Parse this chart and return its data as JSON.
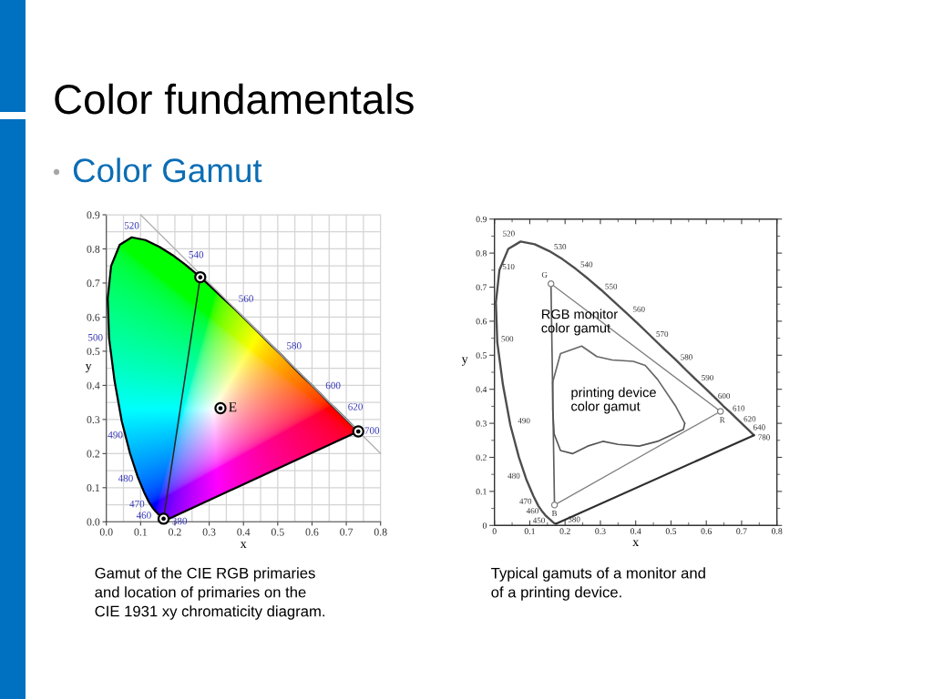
{
  "chart_data": [
    {
      "type": "other",
      "title": "Color fundamentals",
      "subtitle": "Color Gamut"
    },
    {
      "type": "line",
      "xlabel": "x",
      "ylabel": "y",
      "xlim": [
        0,
        0.8
      ],
      "ylim": [
        0,
        0.9
      ],
      "xticks": [
        {
          "value": 0,
          "label": "0.0"
        },
        {
          "value": 0.05,
          "label": null
        },
        0.1,
        {
          "value": 0.15,
          "label": null
        },
        0.2,
        {
          "value": 0.25,
          "label": null
        },
        0.3,
        {
          "value": 0.35,
          "label": null
        },
        0.4,
        {
          "value": 0.45,
          "label": null
        },
        0.5,
        {
          "value": 0.55,
          "label": null
        },
        0.6,
        {
          "value": 0.65,
          "label": null
        },
        0.7,
        {
          "value": 0.75,
          "label": null
        },
        0.8
      ],
      "yticks": [
        {
          "value": 0,
          "label": "0.0"
        },
        {
          "value": 0.05,
          "label": null
        },
        0.1,
        {
          "value": 0.15,
          "label": null
        },
        0.2,
        {
          "value": 0.25,
          "label": null
        },
        0.3,
        {
          "value": 0.35,
          "label": null
        },
        0.4,
        {
          "value": 0.45,
          "label": null
        },
        0.5,
        {
          "value": 0.55,
          "label": null
        },
        0.6,
        {
          "value": 0.65,
          "label": null
        },
        0.7,
        {
          "value": 0.75,
          "label": null
        },
        0.8,
        {
          "value": 0.85,
          "label": null
        },
        0.9
      ],
      "grid": true,
      "series": [
        {
          "type": "line",
          "color": "#000000",
          "x": [
            0.174,
            0.173,
            0.171,
            0.164,
            0.157,
            0.151,
            0.144,
            0.136,
            0.124,
            0.11,
            0.091,
            0.069,
            0.045,
            0.024,
            0.008,
            0.004,
            0.014,
            0.039,
            0.074,
            0.114,
            0.155,
            0.193,
            0.23,
            0.266,
            0.302,
            0.337,
            0.373,
            0.409,
            0.444,
            0.479,
            0.513,
            0.545,
            0.575,
            0.603,
            0.627,
            0.648,
            0.666,
            0.692,
            0.708,
            0.719,
            0.73,
            0.735
          ],
          "values": [
            0.005,
            0.005,
            0.005,
            0.011,
            0.018,
            0.023,
            0.03,
            0.04,
            0.058,
            0.087,
            0.133,
            0.201,
            0.295,
            0.413,
            0.538,
            0.655,
            0.75,
            0.812,
            0.834,
            0.826,
            0.806,
            0.782,
            0.754,
            0.724,
            0.692,
            0.659,
            0.625,
            0.59,
            0.555,
            0.52,
            0.487,
            0.454,
            0.424,
            0.397,
            0.373,
            0.351,
            0.334,
            0.308,
            0.292,
            0.281,
            0.27,
            0.265
          ]
        },
        {
          "type": "line",
          "color": "#000000",
          "x": [
            0.735,
            0.174
          ],
          "values": [
            0.265,
            0.005
          ]
        },
        {
          "type": "line",
          "color": "#262626",
          "x": [
            0.274,
            0.167
          ],
          "values": [
            0.717,
            0.009
          ]
        },
        {
          "type": "line",
          "color": "#b3b3b3",
          "x": [
            0.1,
            0.8
          ],
          "values": [
            0.9,
            0.2
          ]
        },
        {
          "type": "scatter",
          "color": "#000000",
          "marker": "circle",
          "x": [
            0.274,
            0.735,
            0.167
          ],
          "values": [
            0.717,
            0.265,
            0.009
          ]
        },
        {
          "type": "scatter",
          "name": "E",
          "color": "#000000",
          "marker": "circle",
          "x": [
            0.333
          ],
          "values": [
            0.333
          ]
        }
      ],
      "annotations": [
        {
          "text": "520",
          "x": 0.074,
          "y": 0.834
        },
        {
          "text": "540",
          "x": 0.23,
          "y": 0.754
        },
        {
          "text": "560",
          "x": 0.373,
          "y": 0.625
        },
        {
          "text": "580",
          "x": 0.513,
          "y": 0.487
        },
        {
          "text": "600",
          "x": 0.627,
          "y": 0.373
        },
        {
          "text": "620",
          "x": 0.692,
          "y": 0.308
        },
        {
          "text": "700",
          "x": 0.735,
          "y": 0.265
        },
        {
          "text": "500",
          "x": 0.008,
          "y": 0.538
        },
        {
          "text": "490",
          "x": 0.045,
          "y": 0.295
        },
        {
          "text": "480",
          "x": 0.091,
          "y": 0.133
        },
        {
          "text": "470",
          "x": 0.124,
          "y": 0.058
        },
        {
          "text": "460",
          "x": 0.144,
          "y": 0.03
        },
        {
          "text": "380",
          "x": 0.174,
          "y": 0.005
        },
        "Gamut of the CIE RGB primaries\nand location of primaries on the\nCIE 1931 xy chromaticity diagram."
      ]
    },
    {
      "type": "line",
      "xlabel": "x",
      "ylabel": "y",
      "xlim": [
        0,
        0.8
      ],
      "ylim": [
        0,
        0.9
      ],
      "xticks": [
        0,
        {
          "value": 0.05,
          "label": null
        },
        0.1,
        {
          "value": 0.15,
          "label": null
        },
        0.2,
        {
          "value": 0.25,
          "label": null
        },
        0.3,
        {
          "value": 0.35,
          "label": null
        },
        0.4,
        {
          "value": 0.45,
          "label": null
        },
        0.5,
        {
          "value": 0.55,
          "label": null
        },
        0.6,
        {
          "value": 0.65,
          "label": null
        },
        0.7,
        {
          "value": 0.75,
          "label": null
        },
        0.8
      ],
      "yticks": [
        0,
        {
          "value": 0.05,
          "label": null
        },
        0.1,
        {
          "value": 0.15,
          "label": null
        },
        0.2,
        {
          "value": 0.25,
          "label": null
        },
        0.3,
        {
          "value": 0.35,
          "label": null
        },
        0.4,
        {
          "value": 0.45,
          "label": null
        },
        0.5,
        {
          "value": 0.55,
          "label": null
        },
        0.6,
        {
          "value": 0.65,
          "label": null
        },
        0.7,
        {
          "value": 0.75,
          "label": null
        },
        0.8,
        {
          "value": 0.85,
          "label": null
        },
        0.9
      ],
      "series": [
        {
          "type": "line",
          "color": "#4d4d4d",
          "x": [
            0.174,
            0.173,
            0.171,
            0.164,
            0.157,
            0.151,
            0.144,
            0.136,
            0.124,
            0.11,
            0.091,
            0.069,
            0.045,
            0.024,
            0.008,
            0.004,
            0.014,
            0.039,
            0.074,
            0.114,
            0.155,
            0.193,
            0.23,
            0.266,
            0.302,
            0.337,
            0.373,
            0.409,
            0.444,
            0.479,
            0.513,
            0.545,
            0.575,
            0.603,
            0.627,
            0.648,
            0.666,
            0.692,
            0.708,
            0.719,
            0.73,
            0.735
          ],
          "values": [
            0.005,
            0.005,
            0.005,
            0.011,
            0.018,
            0.023,
            0.03,
            0.04,
            0.058,
            0.087,
            0.133,
            0.201,
            0.295,
            0.413,
            0.538,
            0.655,
            0.75,
            0.812,
            0.834,
            0.826,
            0.806,
            0.782,
            0.754,
            0.724,
            0.692,
            0.659,
            0.625,
            0.59,
            0.555,
            0.52,
            0.487,
            0.454,
            0.424,
            0.397,
            0.373,
            0.351,
            0.334,
            0.308,
            0.292,
            0.281,
            0.27,
            0.265
          ]
        },
        {
          "type": "line",
          "color": "#2e2e2e",
          "x": [
            0.735,
            0.174
          ],
          "values": [
            0.265,
            0.005
          ]
        },
        {
          "type": "line",
          "color": "#7f7f7f",
          "x": [
            0.16,
            0.64,
            0.17
          ],
          "values": [
            0.71,
            0.335,
            0.06
          ]
        },
        {
          "type": "line",
          "color": "#5e5e5e",
          "x": [
            0.17,
            0.16
          ],
          "values": [
            0.06,
            0.71
          ]
        },
        {
          "type": "line",
          "color": "#666666",
          "x": [
            0.165,
            0.187,
            0.247,
            0.29,
            0.333,
            0.393,
            0.427,
            0.462,
            0.514,
            0.539
          ],
          "values": [
            0.421,
            0.505,
            0.527,
            0.496,
            0.486,
            0.482,
            0.47,
            0.429,
            0.349,
            0.3
          ]
        },
        {
          "type": "line",
          "color": "#555555",
          "x": [
            0.539,
            0.535,
            0.462,
            0.41,
            0.35,
            0.307,
            0.264,
            0.221,
            0.187,
            0.169,
            0.165,
            0.165
          ],
          "values": [
            0.3,
            0.282,
            0.247,
            0.233,
            0.238,
            0.247,
            0.233,
            0.211,
            0.22,
            0.269,
            0.34,
            0.421
          ]
        },
        {
          "type": "scatter",
          "color": "#7f7f7f",
          "marker": "circle",
          "x": [
            0.16,
            0.64,
            0.17
          ],
          "values": [
            0.71,
            0.335,
            0.06
          ]
        }
      ],
      "annotations": [
        {
          "text": "520",
          "x": 0.074,
          "y": 0.834
        },
        {
          "text": "530",
          "x": 0.155,
          "y": 0.806
        },
        {
          "text": "540",
          "x": 0.23,
          "y": 0.754
        },
        {
          "text": "550",
          "x": 0.302,
          "y": 0.692
        },
        {
          "text": "560",
          "x": 0.373,
          "y": 0.625
        },
        {
          "text": "570",
          "x": 0.444,
          "y": 0.555
        },
        {
          "text": "580",
          "x": 0.513,
          "y": 0.487
        },
        {
          "text": "590",
          "x": 0.575,
          "y": 0.424
        },
        {
          "text": "600",
          "x": 0.627,
          "y": 0.373
        },
        {
          "text": "610",
          "x": 0.666,
          "y": 0.334
        },
        {
          "text": "620",
          "x": 0.692,
          "y": 0.308
        },
        {
          "text": "640",
          "x": 0.719,
          "y": 0.281
        },
        {
          "text": "780",
          "x": 0.735,
          "y": 0.265
        },
        {
          "text": "510",
          "x": 0.014,
          "y": 0.75
        },
        {
          "text": "500",
          "x": 0.008,
          "y": 0.538
        },
        {
          "text": "490",
          "x": 0.045,
          "y": 0.295
        },
        {
          "text": "480",
          "x": 0.091,
          "y": 0.133
        },
        {
          "text": "470",
          "x": 0.124,
          "y": 0.058
        },
        {
          "text": "460",
          "x": 0.144,
          "y": 0.03
        },
        {
          "text": "450",
          "x": 0.157,
          "y": 0.018
        },
        {
          "text": "380",
          "x": 0.174,
          "y": 0.005
        },
        {
          "text": "G",
          "x": 0.16,
          "y": 0.71
        },
        {
          "text": "R",
          "x": 0.64,
          "y": 0.335
        },
        {
          "text": "B",
          "x": 0.17,
          "y": 0.06
        },
        "RGB monitor\ncolor gamut",
        "printing device\ncolor gamut",
        "Typical gamuts of a monitor and\nof a printing device."
      ]
    }
  ]
}
